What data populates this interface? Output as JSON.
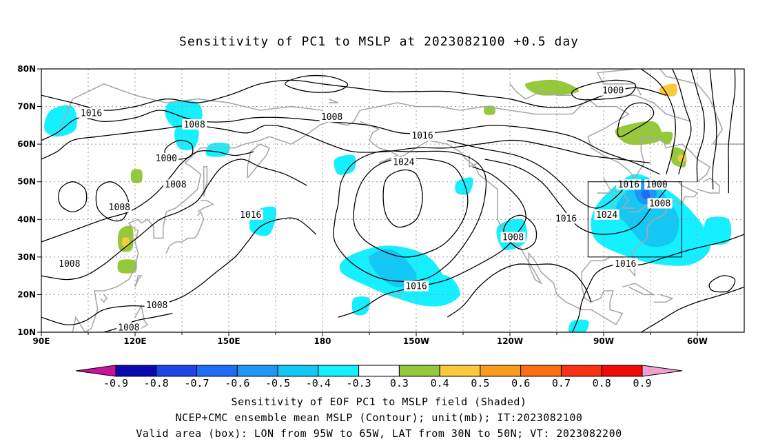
{
  "title": "Sensitivity of PC1 to MSLP at 2023082100 +0.5 day",
  "map": {
    "lon_labels": [
      "90E",
      "120E",
      "150E",
      "180",
      "150W",
      "120W",
      "90W",
      "60W"
    ],
    "lat_labels": [
      "80N",
      "70N",
      "60N",
      "50N",
      "40N",
      "30N",
      "20N",
      "10N"
    ],
    "grid": "dotted",
    "valid_box": {
      "lon_west": "95W",
      "lon_east": "65W",
      "lat_south": "30N",
      "lat_north": "50N"
    }
  },
  "contour_labels": [
    {
      "text": "1016",
      "lon": 106,
      "lat": 68
    },
    {
      "text": "1008",
      "lon": 139,
      "lat": 65
    },
    {
      "text": "1000",
      "lon": 130,
      "lat": 56
    },
    {
      "text": "1008",
      "lon": 133,
      "lat": 49
    },
    {
      "text": "1008",
      "lon": 115,
      "lat": 43
    },
    {
      "text": "1016",
      "lon": 157,
      "lat": 41
    },
    {
      "text": "1008",
      "lon": 99,
      "lat": 28
    },
    {
      "text": "1008",
      "lon": 127,
      "lat": 17
    },
    {
      "text": "1008",
      "lon": 118,
      "lat": 11
    },
    {
      "text": "1008",
      "lon": -177,
      "lat": 67
    },
    {
      "text": "1016",
      "lon": -148,
      "lat": 62
    },
    {
      "text": "1024",
      "lon": -154,
      "lat": 55
    },
    {
      "text": "1016",
      "lon": -150,
      "lat": 22
    },
    {
      "text": "1008",
      "lon": -119,
      "lat": 35
    },
    {
      "text": "1016",
      "lon": -102,
      "lat": 40
    },
    {
      "text": "1024",
      "lon": -89,
      "lat": 41
    },
    {
      "text": "1016",
      "lon": -82,
      "lat": 49
    },
    {
      "text": "1000",
      "lon": -73,
      "lat": 49
    },
    {
      "text": "1008",
      "lon": -72,
      "lat": 44
    },
    {
      "text": "1000",
      "lon": -87,
      "lat": 74
    },
    {
      "text": "1016",
      "lon": -83,
      "lat": 28
    }
  ],
  "colorbar": {
    "labels": [
      "-0.9",
      "-0.8",
      "-0.7",
      "-0.6",
      "-0.5",
      "-0.4",
      "-0.3",
      "0.3",
      "0.4",
      "0.5",
      "0.6",
      "0.7",
      "0.8",
      "0.9"
    ],
    "colors": [
      "#0a0ab0",
      "#1e46e6",
      "#1e6ef5",
      "#1e96f5",
      "#14c8f5",
      "#14f0ff",
      "#ffffff",
      "#96c83c",
      "#fac83c",
      "#fa9b1e",
      "#fa6e14",
      "#fa3214",
      "#f00a0a"
    ],
    "low_end_color": "#c8149b",
    "high_end_color": "#f5a0cd"
  },
  "footer": {
    "line1": "Sensitivity of EOF PC1 to MSLP field (Shaded)",
    "line2": "NCEP+CMC ensemble mean MSLP (Contour); unit(mb); IT:2023082100",
    "line3": "Valid area (box): LON from 95W to 65W, LAT from 30N to 50N; VT: 2023082200"
  }
}
